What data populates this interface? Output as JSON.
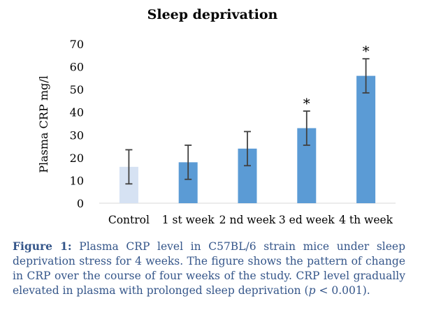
{
  "chart_data": {
    "type": "bar",
    "title": "Sleep deprivation",
    "xlabel": "",
    "ylabel": "Plasma CRP mg/l",
    "ylim": [
      0,
      70
    ],
    "yticks": [
      0,
      10,
      20,
      30,
      40,
      50,
      60,
      70
    ],
    "categories": [
      "Control",
      "1 st week",
      "2 nd week",
      "3 ed week",
      "4 th week"
    ],
    "values": [
      16,
      18,
      24,
      33,
      56
    ],
    "errors": [
      7.5,
      7.5,
      7.5,
      7.5,
      7.5
    ],
    "significance": [
      "",
      "",
      "",
      "*",
      "*"
    ],
    "colors": [
      "#d6e2f3",
      "#5b9bd5",
      "#5b9bd5",
      "#5b9bd5",
      "#5b9bd5"
    ],
    "grid": false,
    "legend": "none"
  },
  "caption": {
    "label": "Figure 1:",
    "text_before": "Plasma CRP level in C57BL/6 strain mice under sleep deprivation stress for 4 weeks. The figure shows the pattern of change in CRP over the course of four weeks of the study. CRP level gradually elevated in plasma with prolonged sleep deprivation (",
    "p_symbol": "p",
    "text_after": " < 0.001)."
  }
}
